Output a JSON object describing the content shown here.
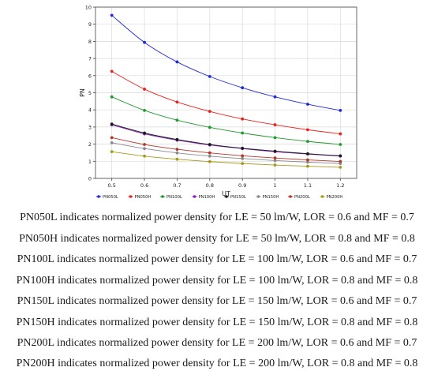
{
  "chart_data": {
    "type": "line",
    "title": "",
    "xlabel": "UT",
    "ylabel": "PN",
    "xlim": [
      0.45,
      1.25
    ],
    "ylim": [
      0,
      10
    ],
    "xticks": [
      "0.5",
      "0.6",
      "0.7",
      "0.8",
      "0.9",
      "1",
      "1.1",
      "1.2"
    ],
    "yticks": [
      "0",
      "1",
      "2",
      "3",
      "4",
      "5",
      "6",
      "7",
      "8",
      "9",
      "10"
    ],
    "grid": true,
    "legend_position": "bottom",
    "x": [
      0.5,
      0.6,
      0.7,
      0.8,
      0.9,
      1.0,
      1.1,
      1.2
    ],
    "series": [
      {
        "name": "PN050L",
        "color": "#1f2bd9",
        "values": [
          9.52,
          7.94,
          6.8,
          5.95,
          5.29,
          4.76,
          4.33,
          3.97
        ]
      },
      {
        "name": "PN050H",
        "color": "#e8231f",
        "values": [
          6.25,
          5.21,
          4.46,
          3.91,
          3.47,
          3.13,
          2.84,
          2.6
        ]
      },
      {
        "name": "PN100L",
        "color": "#1e9a2e",
        "values": [
          4.76,
          3.97,
          3.4,
          2.98,
          2.65,
          2.38,
          2.16,
          1.98
        ]
      },
      {
        "name": "PN100H",
        "color": "#8a1fc0",
        "values": [
          3.13,
          2.6,
          2.23,
          1.95,
          1.74,
          1.56,
          1.42,
          1.3
        ]
      },
      {
        "name": "PN150L",
        "color": "#1a1a1a",
        "values": [
          3.17,
          2.65,
          2.27,
          1.98,
          1.76,
          1.59,
          1.44,
          1.32
        ]
      },
      {
        "name": "PN150H",
        "color": "#8a8a8a",
        "values": [
          2.08,
          1.74,
          1.49,
          1.3,
          1.16,
          1.04,
          0.95,
          0.87
        ]
      },
      {
        "name": "PN200L",
        "color": "#b5352a",
        "values": [
          2.38,
          1.98,
          1.7,
          1.49,
          1.32,
          1.19,
          1.08,
          0.99
        ]
      },
      {
        "name": "PN200H",
        "color": "#a89a1c",
        "values": [
          1.56,
          1.3,
          1.12,
          0.98,
          0.87,
          0.78,
          0.71,
          0.65
        ]
      }
    ]
  },
  "captions": [
    "PN050L indicates normalized power density for LE = 50 lm/W, LOR = 0.6 and MF = 0.7",
    "PN050H indicates normalized power density for LE = 50 lm/W, LOR = 0.8 and MF = 0.8",
    "PN100L indicates normalized power density for LE = 100 lm/W, LOR = 0.6 and MF = 0.7",
    "PN100H indicates normalized power density for LE = 100 lm/W, LOR = 0.8 and MF = 0.8",
    "PN150L indicates normalized power density for LE = 150 lm/W, LOR = 0.6 and MF = 0.7",
    "PN150H indicates normalized power density for LE = 150 lm/W, LOR = 0.8 and MF = 0.8",
    "PN200L indicates normalized power density for LE = 200 lm/W, LOR = 0.6 and MF = 0.7",
    "PN200H indicates normalized power density for LE = 200 lm/W, LOR = 0.8 and MF = 0.8"
  ]
}
